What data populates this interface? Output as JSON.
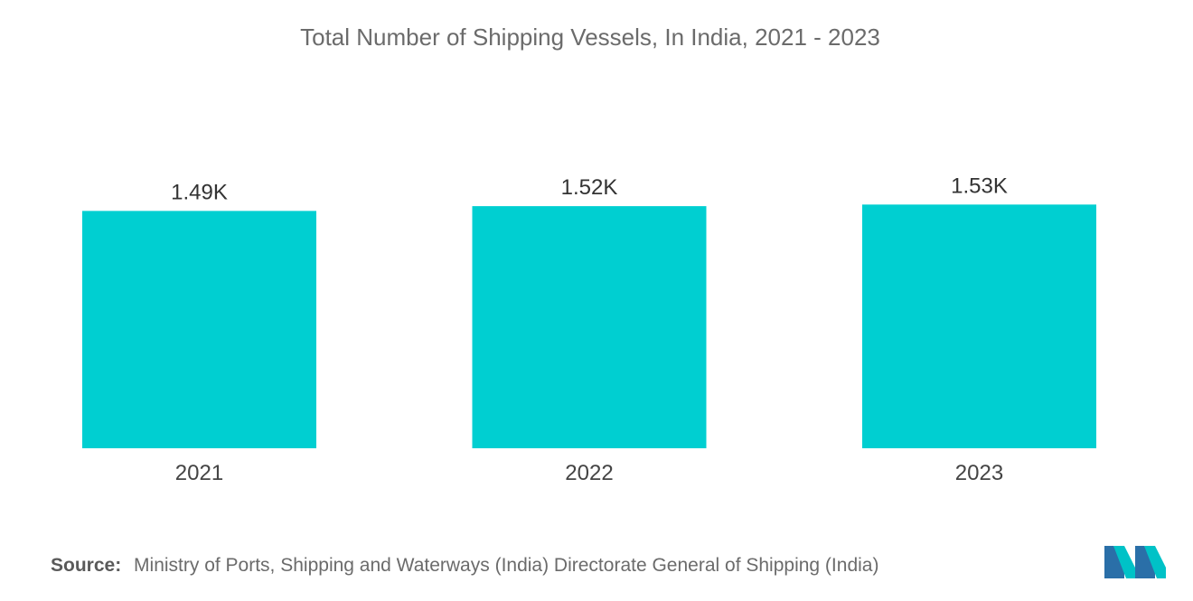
{
  "chart_data": {
    "type": "bar",
    "title": "Total Number of Shipping Vessels, In India, 2021 - 2023",
    "categories": [
      "2021",
      "2022",
      "2023"
    ],
    "values": [
      1490,
      1520,
      1530
    ],
    "value_labels": [
      "1.49K",
      "1.52K",
      "1.53K"
    ],
    "xlabel": "",
    "ylabel": "",
    "ylim": [
      0,
      1600
    ],
    "grid": false,
    "legend": "none",
    "bar_color": "#00cfd1"
  },
  "source": {
    "label": "Source:",
    "text": "Ministry of Ports, Shipping and Waterways (India) Directorate General of Shipping (India)"
  },
  "logo": {
    "icon": "mordor-intelligence-logo-icon",
    "colors": [
      "#2a6fa8",
      "#00c2c7"
    ]
  }
}
